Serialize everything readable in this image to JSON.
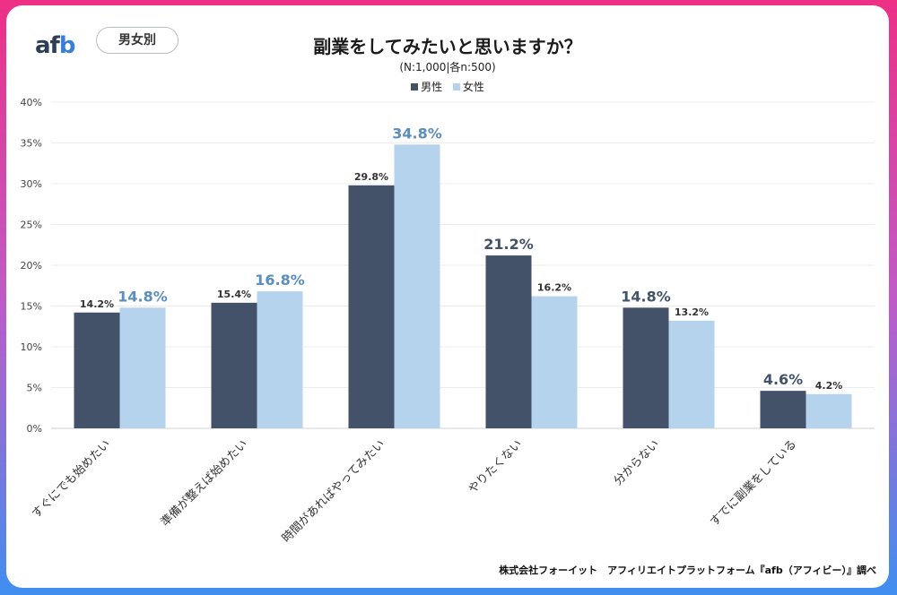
{
  "header": {
    "logo_a": "af",
    "logo_b": "b",
    "badge": "男女別"
  },
  "title": "副業をしてみたいと思いますか？",
  "subtitle": "(N:1,000|各n:500)",
  "footer": "株式会社フォーイット　アフィリエイトプラットフォーム『afb（アフィビー）』調べ",
  "colors": {
    "male": "#435269",
    "female": "#b6d3ee",
    "female_label": "#5b8ebd"
  },
  "chart_data": {
    "type": "bar",
    "categories": [
      "すぐにでも始めたい",
      "準備が整えば始めたい",
      "時間があればやってみたい",
      "やりたくない",
      "分からない",
      "すでに副業をしている"
    ],
    "series": [
      {
        "name": "男性",
        "values": [
          14.2,
          15.4,
          29.8,
          21.2,
          14.8,
          4.6
        ],
        "labels": [
          "14.2%",
          "15.4%",
          "29.8%",
          "21.2%",
          "14.8%",
          "4.6%"
        ],
        "emphasis": [
          false,
          false,
          false,
          true,
          true,
          true
        ]
      },
      {
        "name": "女性",
        "values": [
          14.8,
          16.8,
          34.8,
          16.2,
          13.2,
          4.2
        ],
        "labels": [
          "14.8%",
          "16.8%",
          "34.8%",
          "16.2%",
          "13.2%",
          "4.2%"
        ],
        "emphasis": [
          true,
          true,
          true,
          false,
          false,
          false
        ]
      }
    ],
    "ylim": [
      0,
      40
    ],
    "yticks": [
      "0%",
      "5%",
      "10%",
      "15%",
      "20%",
      "25%",
      "30%",
      "35%",
      "40%"
    ],
    "grid": true,
    "legend": "top-center"
  }
}
